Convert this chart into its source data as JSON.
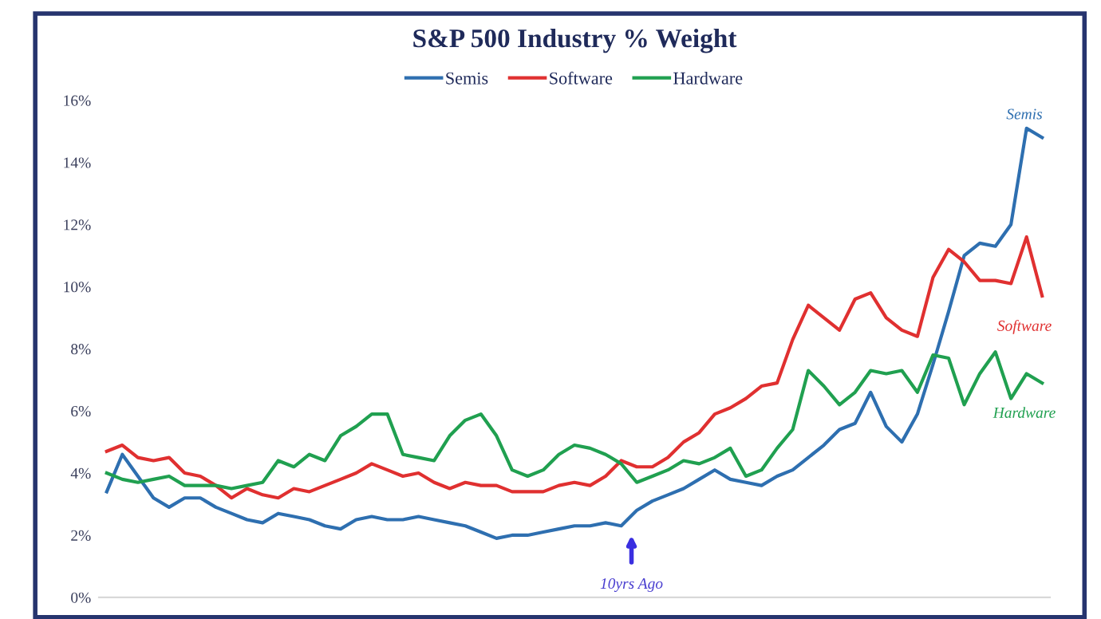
{
  "chart_data": {
    "type": "line",
    "title": "S&P 500 Industry % Weight",
    "categories": [
      null,
      null,
      null,
      null,
      null,
      null,
      null,
      null,
      null,
      null,
      null,
      null,
      null,
      null,
      null,
      null,
      null,
      null,
      null,
      null,
      null,
      null,
      null,
      null,
      null,
      null,
      null,
      null,
      null,
      null,
      null,
      null,
      null,
      null,
      null,
      null,
      null,
      null,
      null,
      null,
      null,
      null,
      null,
      null,
      null,
      null,
      null,
      null,
      null,
      null,
      null,
      null,
      null,
      null,
      null,
      null,
      null,
      null,
      null,
      null,
      null
    ],
    "series": [
      {
        "name": "Semis",
        "color": "#2e6fb0",
        "values": [
          3.4,
          4.6,
          3.9,
          3.2,
          2.9,
          3.2,
          3.2,
          2.9,
          2.7,
          2.5,
          2.4,
          2.7,
          2.6,
          2.5,
          2.3,
          2.2,
          2.5,
          2.6,
          2.5,
          2.5,
          2.6,
          2.5,
          2.4,
          2.3,
          2.1,
          1.9,
          2.0,
          2.0,
          2.1,
          2.2,
          2.3,
          2.3,
          2.4,
          2.3,
          2.8,
          3.1,
          3.3,
          3.5,
          3.8,
          4.1,
          3.8,
          3.7,
          3.6,
          3.9,
          4.1,
          4.5,
          4.9,
          5.4,
          5.6,
          6.6,
          5.5,
          5.0,
          5.9,
          7.5,
          9.2,
          11.0,
          11.4,
          11.3,
          12.0,
          15.1,
          14.8
        ]
      },
      {
        "name": "Software",
        "color": "#e03030",
        "values": [
          4.7,
          4.9,
          4.5,
          4.4,
          4.5,
          4.0,
          3.9,
          3.6,
          3.2,
          3.5,
          3.3,
          3.2,
          3.5,
          3.4,
          3.6,
          3.8,
          4.0,
          4.3,
          4.1,
          3.9,
          4.0,
          3.7,
          3.5,
          3.7,
          3.6,
          3.6,
          3.4,
          3.4,
          3.4,
          3.6,
          3.7,
          3.6,
          3.9,
          4.4,
          4.2,
          4.2,
          4.5,
          5.0,
          5.3,
          5.9,
          6.1,
          6.4,
          6.8,
          6.9,
          8.3,
          9.4,
          9.0,
          8.6,
          9.6,
          9.8,
          9.0,
          8.6,
          8.4,
          10.3,
          11.2,
          10.8,
          10.2,
          10.2,
          10.1,
          11.6,
          9.7
        ]
      },
      {
        "name": "Hardware",
        "color": "#20a050",
        "values": [
          4.0,
          3.8,
          3.7,
          3.8,
          3.9,
          3.6,
          3.6,
          3.6,
          3.5,
          3.6,
          3.7,
          4.4,
          4.2,
          4.6,
          4.4,
          5.2,
          5.5,
          5.9,
          5.9,
          4.6,
          4.5,
          4.4,
          5.2,
          5.7,
          5.9,
          5.2,
          4.1,
          3.9,
          4.1,
          4.6,
          4.9,
          4.8,
          4.6,
          4.3,
          3.7,
          3.9,
          4.1,
          4.4,
          4.3,
          4.5,
          4.8,
          3.9,
          4.1,
          4.8,
          5.4,
          7.3,
          6.8,
          6.2,
          6.6,
          7.3,
          7.2,
          7.3,
          6.6,
          7.8,
          7.7,
          6.2,
          7.2,
          7.9,
          6.4,
          7.2,
          6.9
        ]
      }
    ],
    "ylim": [
      0,
      16
    ],
    "yticks": [
      {
        "value": 0,
        "label": "0%"
      },
      {
        "value": 2,
        "label": "2%"
      },
      {
        "value": 4,
        "label": "4%"
      },
      {
        "value": 6,
        "label": "6%"
      },
      {
        "value": 8,
        "label": "8%"
      },
      {
        "value": 10,
        "label": "10%"
      },
      {
        "value": 12,
        "label": "12%"
      },
      {
        "value": 14,
        "label": "14%"
      },
      {
        "value": 16,
        "label": "16%"
      }
    ],
    "tick_labels": "y",
    "legend": "top",
    "grid": false,
    "marker": "none",
    "line_style": "solid",
    "annotations": [
      "10yrs Ago"
    ]
  }
}
